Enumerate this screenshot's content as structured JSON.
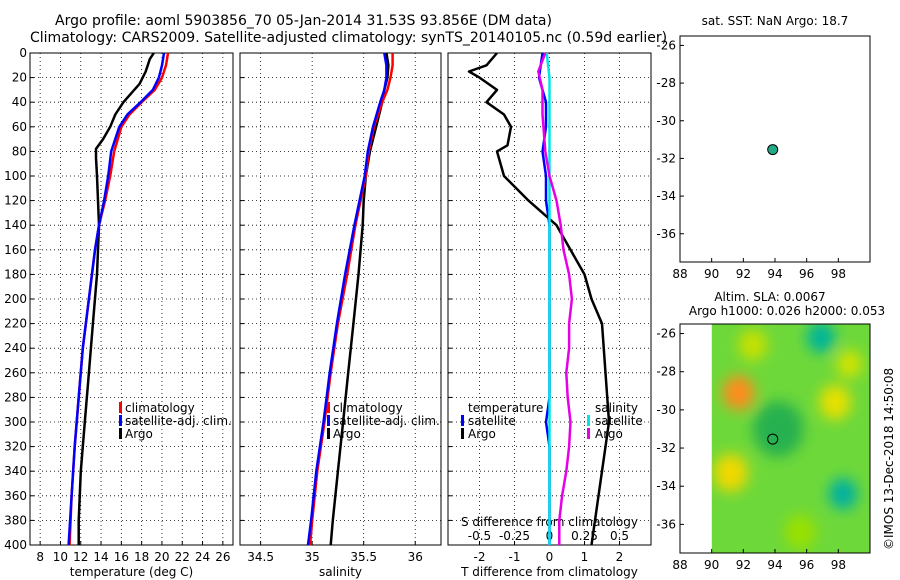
{
  "titles": {
    "line1": "Argo profile: aoml 5903856_70 05-Jan-2014 31.53S 93.856E (DM data)",
    "line2": "Climatology: CARS2009. Satellite-adjusted climatology: synTS_20140105.nc (0.59d earlier)"
  },
  "depth_ticks": [
    0,
    20,
    40,
    60,
    80,
    100,
    120,
    140,
    160,
    180,
    200,
    220,
    240,
    260,
    280,
    300,
    320,
    340,
    360,
    380,
    400
  ],
  "colors": {
    "climatology": "#ff0000",
    "satellite": "#0000ff",
    "argo": "#000000",
    "s_sat": "#00e5e5",
    "s_argo": "#e600e6"
  },
  "chart_data": [
    {
      "type": "line",
      "id": "temperature",
      "xlabel": "temperature (deg C)",
      "ylabel": "",
      "xlim": [
        7,
        27
      ],
      "ylim": [
        0,
        400
      ],
      "x_ticks": [
        "8",
        "10",
        "12",
        "14",
        "16",
        "18",
        "20",
        "22",
        "24",
        "26"
      ],
      "legend": [
        "climatology",
        "satellite-adj. clim.",
        "Argo"
      ],
      "series": [
        {
          "name": "climatology",
          "depth": [
            0,
            10,
            20,
            30,
            40,
            50,
            60,
            80,
            100,
            120,
            140,
            160,
            200,
            240,
            280,
            320,
            360,
            400
          ],
          "values": [
            20.6,
            20.4,
            20.0,
            19.3,
            18.0,
            16.8,
            16.0,
            15.3,
            14.9,
            14.4,
            13.8,
            13.4,
            12.8,
            12.2,
            11.8,
            11.4,
            11.1,
            10.9
          ]
        },
        {
          "name": "satellite-adj. clim.",
          "depth": [
            0,
            10,
            20,
            30,
            40,
            50,
            60,
            80,
            100,
            120,
            140,
            160,
            200,
            240,
            280,
            320,
            360,
            400
          ],
          "values": [
            20.2,
            20.0,
            19.7,
            19.1,
            17.9,
            16.6,
            15.8,
            15.0,
            14.7,
            14.3,
            13.8,
            13.4,
            12.8,
            12.2,
            11.8,
            11.4,
            11.1,
            10.8
          ]
        },
        {
          "name": "Argo",
          "depth": [
            0,
            5,
            15,
            25,
            40,
            50,
            60,
            70,
            78,
            85,
            100,
            140,
            180,
            220,
            260,
            300,
            340,
            380,
            400
          ],
          "values": [
            19.2,
            18.8,
            18.4,
            17.8,
            16.2,
            15.4,
            14.9,
            14.2,
            13.5,
            13.5,
            13.6,
            13.8,
            13.6,
            13.2,
            12.8,
            12.4,
            12.0,
            11.8,
            11.8
          ]
        }
      ]
    },
    {
      "type": "line",
      "id": "salinity",
      "xlabel": "salinity",
      "ylabel": "",
      "xlim": [
        34.3,
        36.25
      ],
      "ylim": [
        0,
        400
      ],
      "x_ticks": [
        "34.5",
        "35",
        "35.5",
        "36"
      ],
      "legend": [
        "climatology",
        "satellite-adj. clim.",
        "Argo"
      ],
      "series": [
        {
          "name": "climatology",
          "depth": [
            0,
            10,
            20,
            30,
            40,
            60,
            80,
            100,
            140,
            180,
            220,
            260,
            300,
            340,
            380,
            400
          ],
          "values": [
            35.78,
            35.78,
            35.76,
            35.73,
            35.68,
            35.6,
            35.55,
            35.52,
            35.42,
            35.34,
            35.25,
            35.18,
            35.12,
            35.05,
            35.0,
            34.98
          ]
        },
        {
          "name": "satellite-adj. clim.",
          "depth": [
            0,
            10,
            20,
            30,
            40,
            60,
            80,
            100,
            140,
            180,
            220,
            260,
            300,
            340,
            380,
            400
          ],
          "values": [
            35.7,
            35.72,
            35.72,
            35.7,
            35.66,
            35.59,
            35.54,
            35.51,
            35.41,
            35.32,
            35.24,
            35.17,
            35.11,
            35.04,
            34.99,
            34.96
          ]
        },
        {
          "name": "Argo",
          "depth": [
            0,
            10,
            20,
            30,
            40,
            60,
            80,
            100,
            120,
            140,
            180,
            220,
            260,
            300,
            340,
            380,
            400
          ],
          "values": [
            35.72,
            35.74,
            35.73,
            35.7,
            35.68,
            35.62,
            35.56,
            35.52,
            35.5,
            35.49,
            35.45,
            35.4,
            35.35,
            35.3,
            35.25,
            35.2,
            35.18
          ]
        }
      ]
    },
    {
      "type": "line",
      "id": "differences",
      "xlabel": "T difference from climatology",
      "top_axis_label": "S difference from climatology",
      "xlim": [
        -2.9,
        2.9
      ],
      "ylim": [
        0,
        400
      ],
      "x_ticks": [
        "-2",
        "-1",
        "0",
        "1",
        "2"
      ],
      "top_ticks": [
        "-0.5",
        "-0.25",
        "0",
        "0.25",
        "0.5"
      ],
      "legend_left": {
        "title": "temperature",
        "items": [
          "satellite",
          "Argo"
        ]
      },
      "legend_right": {
        "title": "salinity",
        "items": [
          "satellite",
          "Argo"
        ]
      },
      "series": [
        {
          "name": "temperature satellite",
          "depth": [
            0,
            20,
            40,
            60,
            80,
            100,
            120,
            140,
            160,
            200,
            240,
            280,
            300,
            320,
            360,
            400
          ],
          "values": [
            -0.2,
            -0.3,
            -0.1,
            -0.1,
            -0.2,
            -0.1,
            -0.1,
            0.0,
            0.0,
            0.0,
            0.0,
            0.0,
            -0.1,
            0.0,
            0.0,
            0.0
          ]
        },
        {
          "name": "temperature Argo",
          "depth": [
            0,
            10,
            15,
            20,
            30,
            40,
            50,
            60,
            75,
            80,
            100,
            120,
            140,
            160,
            180,
            200,
            220,
            260,
            300,
            340,
            380,
            400
          ],
          "values": [
            -1.5,
            -1.8,
            -2.3,
            -2.0,
            -1.5,
            -1.8,
            -1.3,
            -1.1,
            -1.2,
            -1.5,
            -1.3,
            -0.6,
            0.2,
            0.6,
            1.0,
            1.2,
            1.5,
            1.6,
            1.7,
            1.5,
            1.3,
            1.2
          ]
        },
        {
          "name": "salinity satellite",
          "depth": [
            0,
            20,
            40,
            60,
            80,
            120,
            160,
            200,
            240,
            280,
            320,
            360,
            400
          ],
          "values": [
            -0.02,
            0.0,
            0.0,
            0.0,
            0.0,
            0.0,
            0.0,
            0.0,
            0.0,
            0.0,
            0.0,
            0.0,
            0.0
          ]
        },
        {
          "name": "salinity Argo",
          "depth": [
            0,
            15,
            30,
            50,
            80,
            100,
            120,
            140,
            160,
            180,
            200,
            220,
            240,
            260,
            280,
            300,
            320,
            340,
            360,
            380,
            400
          ],
          "values": [
            -0.03,
            -0.08,
            -0.05,
            -0.05,
            -0.03,
            0.0,
            0.05,
            0.08,
            0.1,
            0.14,
            0.16,
            0.14,
            0.14,
            0.12,
            0.13,
            0.15,
            0.14,
            0.12,
            0.09,
            0.07,
            0.07
          ]
        }
      ]
    },
    {
      "type": "scatter",
      "id": "sst-map",
      "title": "sat. SST: NaN Argo: 18.7",
      "xlim": [
        88,
        100
      ],
      "ylim": [
        -37.5,
        -25.5
      ],
      "x_ticks": [
        "88",
        "90",
        "92",
        "94",
        "96",
        "98"
      ],
      "y_ticks": [
        "-26",
        "-28",
        "-30",
        "-32",
        "-34",
        "-36"
      ],
      "point": {
        "lon": 93.856,
        "lat": -31.53
      }
    },
    {
      "type": "heatmap",
      "id": "sla-map",
      "title_line1": "Altim. SLA: 0.0067",
      "title_line2": "Argo h1000: 0.026 h2000: 0.053",
      "xlim": [
        88,
        100
      ],
      "ylim": [
        -37.5,
        -25.5
      ],
      "x_ticks": [
        "88",
        "90",
        "92",
        "94",
        "96",
        "98"
      ],
      "y_ticks": [
        "-26",
        "-28",
        "-30",
        "-32",
        "-34",
        "-36"
      ],
      "data_lon_range": [
        90,
        100
      ],
      "point": {
        "lon": 93.856,
        "lat": -31.53
      },
      "blobs": [
        {
          "lon": 91.7,
          "lat": -29.1,
          "r": 1.0,
          "color": "#ff8c1a"
        },
        {
          "lon": 91.2,
          "lat": -33.3,
          "r": 1.1,
          "color": "#f0d800"
        },
        {
          "lon": 92.6,
          "lat": -26.6,
          "r": 0.9,
          "color": "#c8e000"
        },
        {
          "lon": 96.9,
          "lat": -26.2,
          "r": 0.9,
          "color": "#00b49a"
        },
        {
          "lon": 94.2,
          "lat": -31.0,
          "r": 1.6,
          "color": "#28b050"
        },
        {
          "lon": 97.8,
          "lat": -29.6,
          "r": 1.0,
          "color": "#e8e000"
        },
        {
          "lon": 98.3,
          "lat": -34.4,
          "r": 0.9,
          "color": "#00b0a0"
        },
        {
          "lon": 95.6,
          "lat": -36.4,
          "r": 1.0,
          "color": "#9ae000"
        },
        {
          "lon": 98.7,
          "lat": -27.6,
          "r": 0.8,
          "color": "#d4e400"
        }
      ]
    }
  ],
  "footer": {
    "stamp": "©IMOS 13-Dec-2018 14:50:08"
  }
}
